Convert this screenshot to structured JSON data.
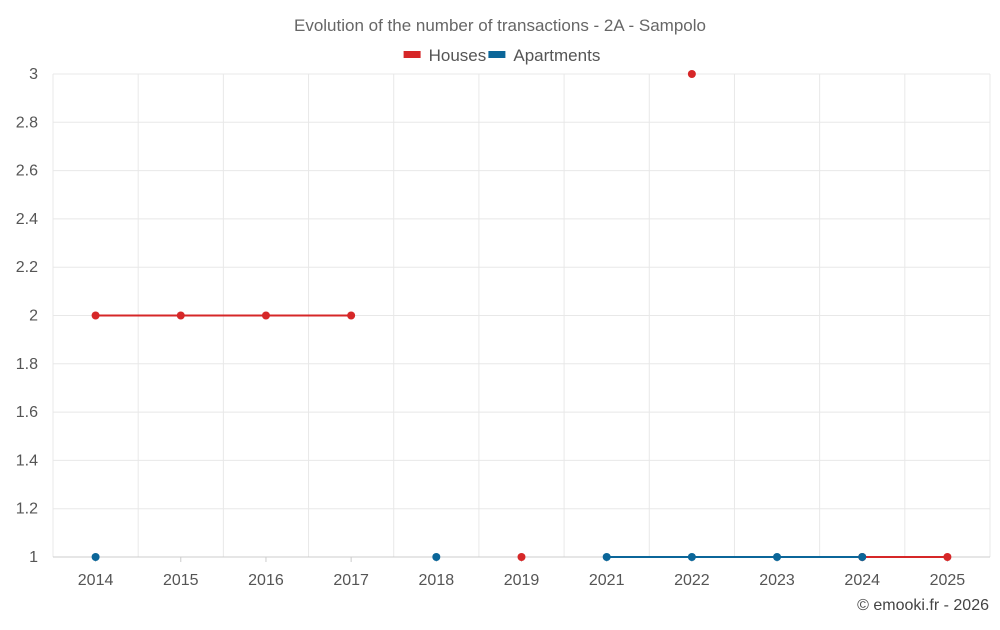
{
  "chart_data": {
    "type": "line",
    "title": "Evolution of the number of transactions - 2A - Sampolo",
    "categories": [
      "2014",
      "2015",
      "2016",
      "2017",
      "2018",
      "2019",
      "2021",
      "2022",
      "2023",
      "2024",
      "2025"
    ],
    "series": [
      {
        "name": "Houses",
        "color": "#d62728",
        "values": [
          2,
          2,
          2,
          2,
          null,
          1,
          null,
          3,
          null,
          1,
          1
        ]
      },
      {
        "name": "Apartments",
        "color": "#0b6699",
        "values": [
          1,
          null,
          null,
          null,
          1,
          null,
          1,
          1,
          1,
          1,
          null
        ]
      }
    ],
    "yticks": [
      "1",
      "1.2",
      "1.4",
      "1.6",
      "1.8",
      "2",
      "2.2",
      "2.4",
      "2.6",
      "2.8",
      "3"
    ],
    "ylim": [
      1,
      3
    ],
    "grid": true,
    "legend_position": "top-center"
  },
  "footer": {
    "credit": "© emooki.fr - 2026"
  }
}
